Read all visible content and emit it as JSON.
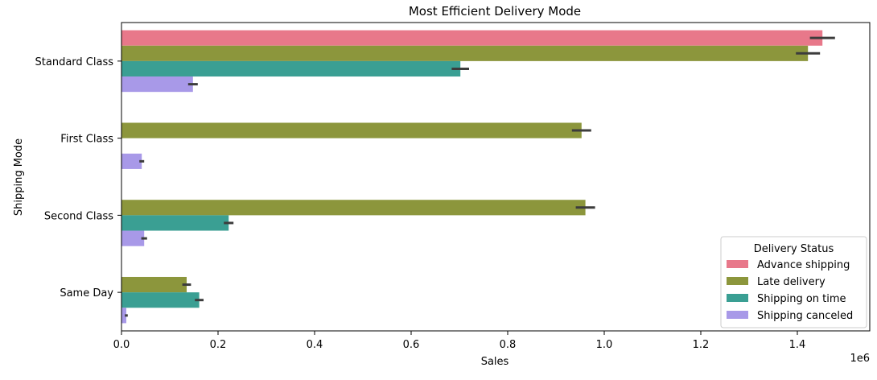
{
  "chart_data": {
    "type": "bar",
    "orientation": "horizontal",
    "title": "Most Efficient Delivery Mode",
    "xlabel": "Sales",
    "ylabel": "Shipping Mode",
    "x_offset_label": "1e6",
    "xlim": [
      0,
      1.55
    ],
    "x_ticks": [
      "0.0",
      "0.2",
      "0.4",
      "0.6",
      "0.8",
      "1.0",
      "1.2",
      "1.4"
    ],
    "x_tick_values": [
      0,
      0.2,
      0.4,
      0.6,
      0.8,
      1.0,
      1.2,
      1.4
    ],
    "categories": [
      "Standard Class",
      "First Class",
      "Second Class",
      "Same Day"
    ],
    "legend": {
      "title": "Delivery Status",
      "position": "lower right"
    },
    "series": [
      {
        "name": "Advance shipping",
        "color": "#e8788a",
        "values": [
          1.452,
          null,
          null,
          null
        ],
        "err": [
          0.026,
          null,
          null,
          null
        ]
      },
      {
        "name": "Late delivery",
        "color": "#8c963c",
        "values": [
          1.422,
          0.953,
          0.961,
          0.135
        ],
        "err": [
          0.025,
          0.02,
          0.02,
          0.009
        ]
      },
      {
        "name": "Shipping on time",
        "color": "#3a9f93",
        "values": [
          0.702,
          null,
          0.222,
          0.161
        ],
        "err": [
          0.018,
          null,
          0.01,
          0.009
        ]
      },
      {
        "name": "Shipping canceled",
        "color": "#a899e8",
        "values": [
          0.148,
          0.042,
          0.047,
          0.01
        ],
        "err": [
          0.01,
          0.005,
          0.006,
          0.003
        ]
      }
    ]
  }
}
